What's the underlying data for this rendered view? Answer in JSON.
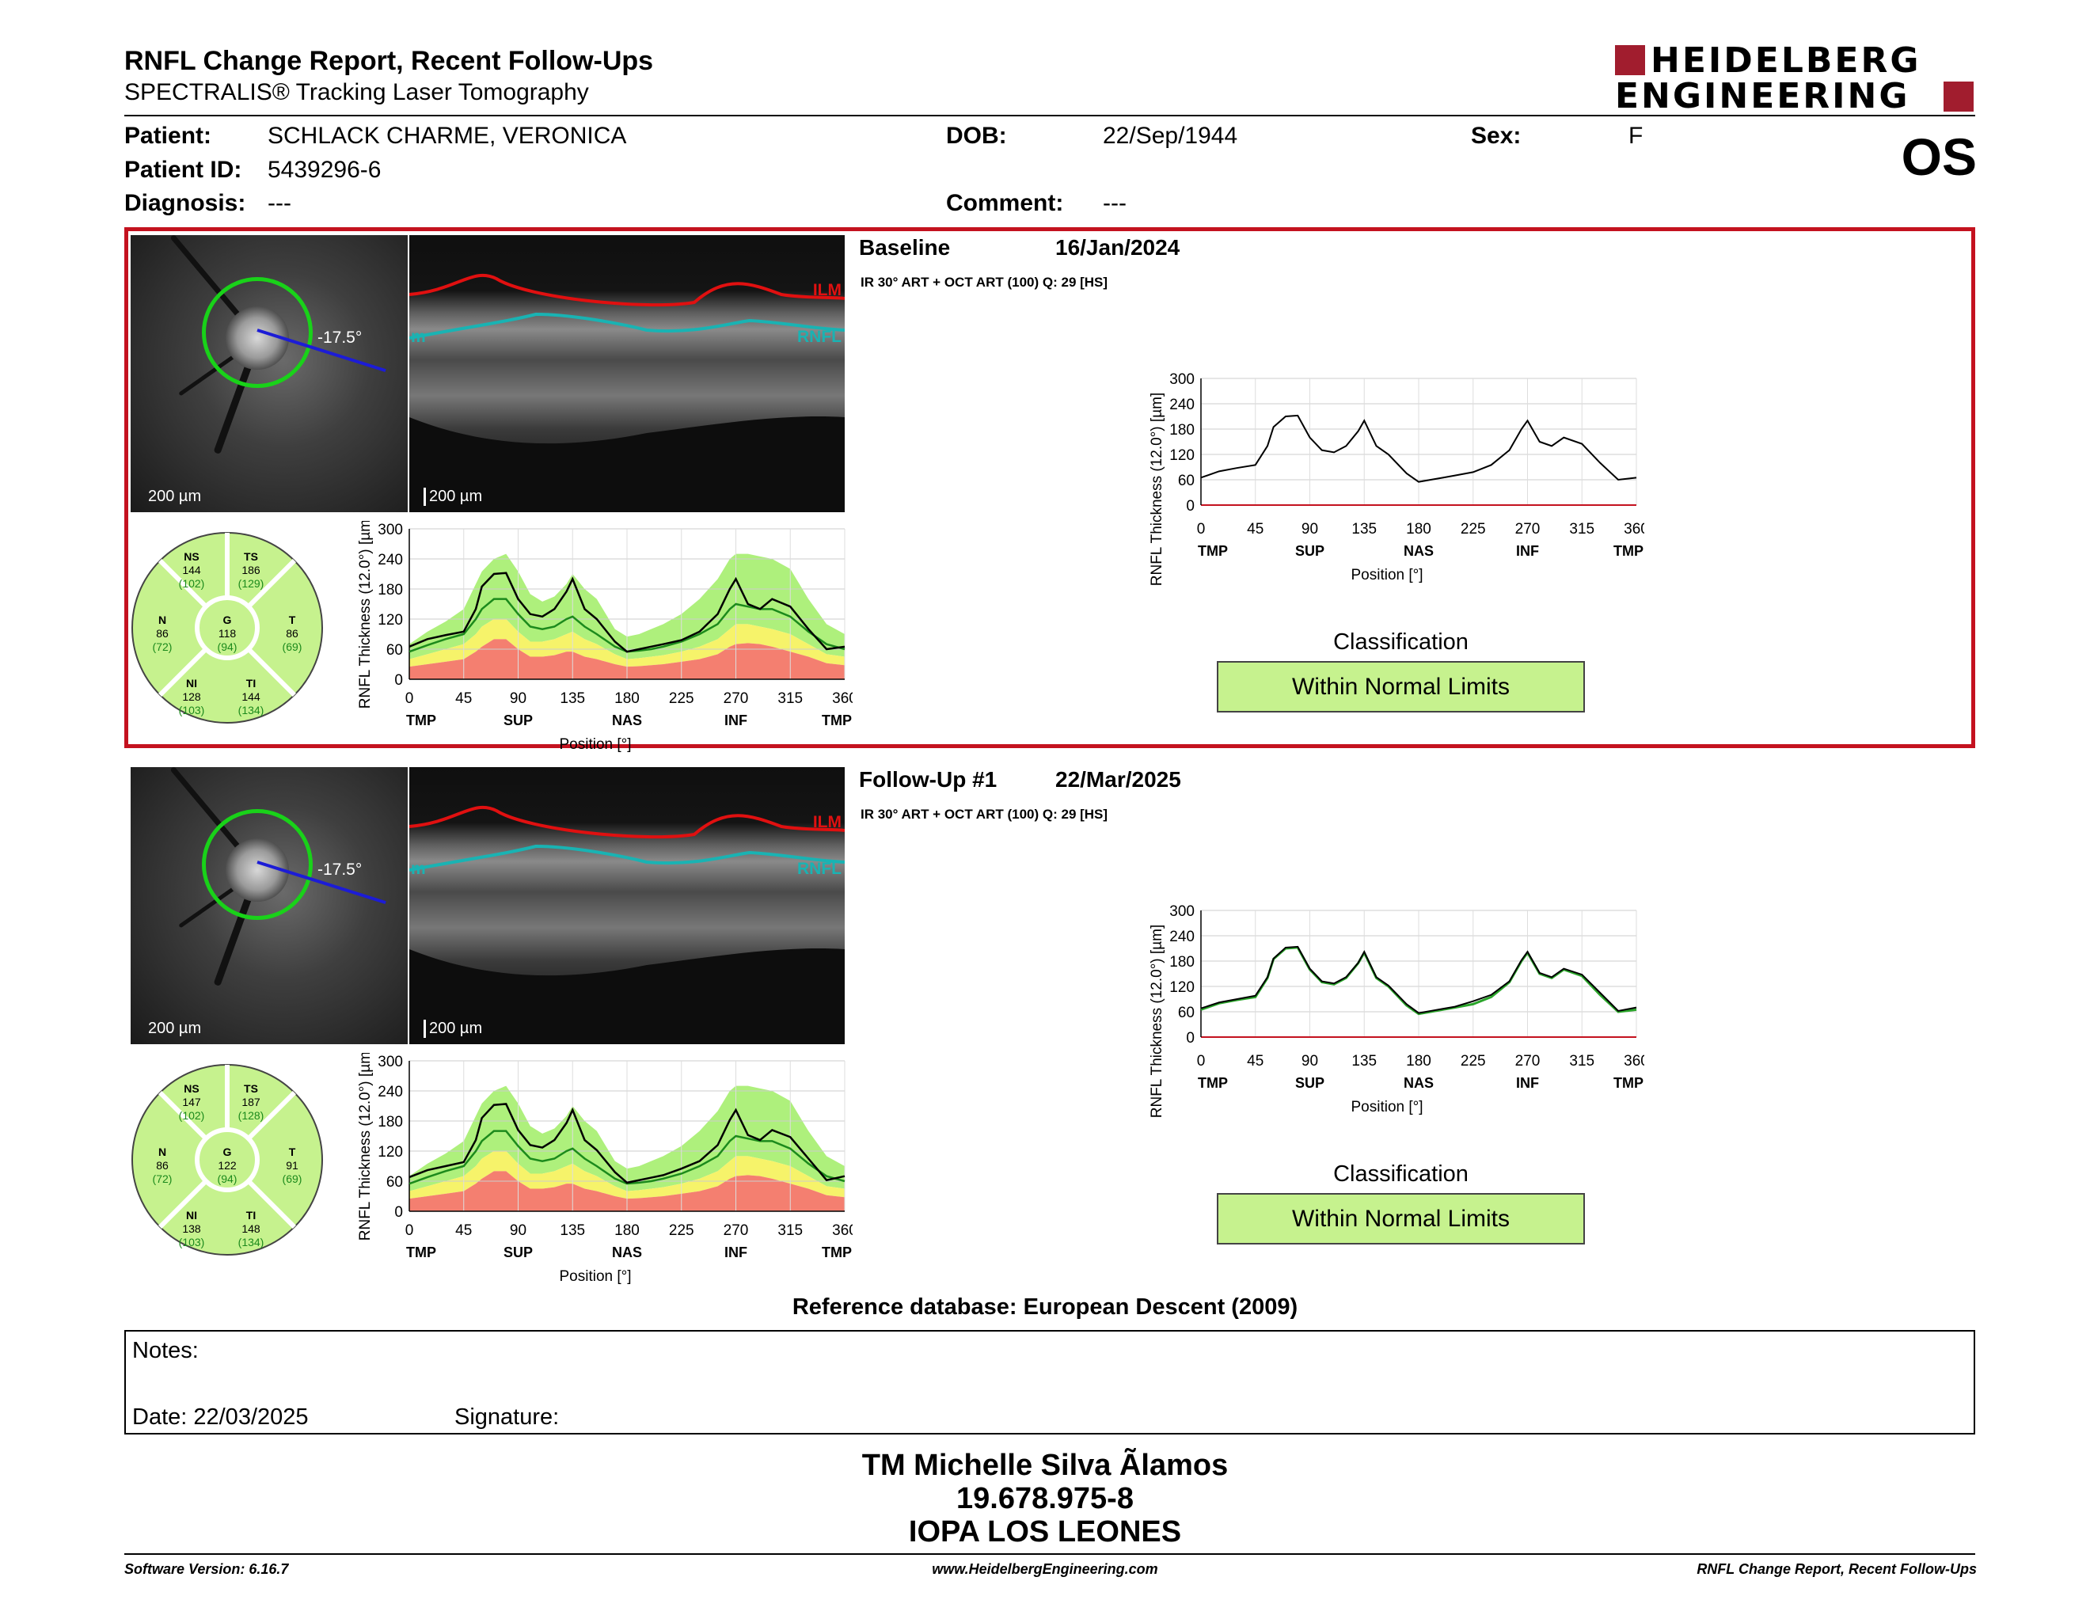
{
  "header": {
    "title": "RNFL Change Report, Recent Follow-Ups",
    "subtitle": "SPECTRALIS® Tracking Laser Tomography",
    "logo_line1": "HEIDELBERG",
    "logo_line2": "ENGINEERING",
    "eye": "OS"
  },
  "patient": {
    "patient_label": "Patient:",
    "patient_value": "SCHLACK CHARME, VERONICA",
    "id_label": "Patient ID:",
    "id_value": "5439296-6",
    "diag_label": "Diagnosis:",
    "diag_value": "---",
    "dob_label": "DOB:",
    "dob_value": "22/Sep/1944",
    "comment_label": "Comment:",
    "comment_value": "---",
    "sex_label": "Sex:",
    "sex_value": "F"
  },
  "image_labels": {
    "scale": "200 µm",
    "angle": "-17.5°",
    "ilm": "ILM",
    "rnfl": "RNFL",
    "m": "m"
  },
  "chart_common": {
    "ylabel": "RNFL Thickness (12.0°) [µm]",
    "xlabel": "Position [°]",
    "yticks": [
      "0",
      "60",
      "120",
      "180",
      "240",
      "300"
    ],
    "xticks": [
      "0",
      "45",
      "90",
      "135",
      "180",
      "225",
      "270",
      "315",
      "360"
    ],
    "sectors": [
      "TMP",
      "SUP",
      "NAS",
      "INF",
      "TMP"
    ],
    "classification_label": "Classification"
  },
  "exams": [
    {
      "name": "Baseline",
      "date": "16/Jan/2024",
      "acq": "IR 30° ART + OCT ART (100) Q: 29 [HS]",
      "classification": "Within Normal Limits",
      "sectors": {
        "NS": "144",
        "NS_ref": "(102)",
        "TS": "186",
        "TS_ref": "(129)",
        "N": "86",
        "N_ref": "(72)",
        "G": "118",
        "G_ref": "(94)",
        "T": "86",
        "T_ref": "(69)",
        "NI": "128",
        "NI_ref": "(103)",
        "TI": "144",
        "TI_ref": "(134)"
      }
    },
    {
      "name": "Follow-Up #1",
      "date": "22/Mar/2025",
      "acq": "IR 30° ART + OCT ART (100) Q: 29 [HS]",
      "classification": "Within Normal Limits",
      "sectors": {
        "NS": "147",
        "NS_ref": "(102)",
        "TS": "187",
        "TS_ref": "(128)",
        "N": "86",
        "N_ref": "(72)",
        "G": "122",
        "G_ref": "(94)",
        "T": "91",
        "T_ref": "(69)",
        "NI": "138",
        "NI_ref": "(103)",
        "TI": "148",
        "TI_ref": "(134)"
      }
    }
  ],
  "sector_names": {
    "NS": "NS",
    "TS": "TS",
    "N": "N",
    "G": "G",
    "T": "T",
    "NI": "NI",
    "TI": "TI"
  },
  "chart_data": [
    {
      "type": "line",
      "title": "",
      "xlabel": "Position [°]",
      "ylabel": "RNFL Thickness (12.0°) [µm]",
      "xlim": [
        0,
        360
      ],
      "ylim": [
        0,
        300
      ],
      "x": [
        0,
        15,
        30,
        45,
        55,
        60,
        70,
        80,
        90,
        100,
        110,
        120,
        130,
        135,
        145,
        155,
        170,
        180,
        190,
        200,
        210,
        225,
        240,
        255,
        265,
        270,
        280,
        290,
        300,
        315,
        330,
        345,
        360
      ],
      "series": [
        {
          "values": [
            65,
            80,
            88,
            95,
            140,
            185,
            210,
            212,
            160,
            130,
            125,
            140,
            175,
            200,
            140,
            120,
            75,
            55,
            60,
            65,
            70,
            78,
            95,
            130,
            180,
            200,
            150,
            140,
            160,
            145,
            100,
            60,
            65
          ]
        }
      ]
    },
    {
      "type": "line",
      "title": "",
      "xlabel": "Position [°]",
      "ylabel": "RNFL Thickness (12.0°) [µm]",
      "xlim": [
        0,
        360
      ],
      "ylim": [
        0,
        300
      ],
      "x": [
        0,
        15,
        30,
        45,
        55,
        60,
        70,
        80,
        90,
        100,
        110,
        120,
        130,
        135,
        145,
        155,
        170,
        180,
        190,
        200,
        210,
        225,
        240,
        255,
        265,
        270,
        280,
        290,
        300,
        315,
        330,
        345,
        360
      ],
      "series": [
        {
          "values": [
            68,
            82,
            90,
            98,
            142,
            186,
            212,
            214,
            162,
            132,
            127,
            142,
            176,
            202,
            142,
            122,
            78,
            57,
            62,
            67,
            72,
            85,
            100,
            132,
            182,
            202,
            152,
            142,
            162,
            148,
            105,
            62,
            70
          ]
        }
      ]
    }
  ],
  "reference": "Reference database: European Descent (2009)",
  "notes": {
    "notes_label": "Notes:",
    "date_label": "Date: 22/03/2025",
    "signature_label": "Signature:"
  },
  "signature": {
    "name": "TM Michelle Silva Ãlamos",
    "id": "19.678.975-8",
    "org": "IOPA LOS LEONES"
  },
  "footer": {
    "version": "Software Version: 6.16.7",
    "url": "www.HeidelbergEngineering.com",
    "report": "RNFL Change Report, Recent Follow-Ups"
  },
  "colors": {
    "accent_red": "#c4121f",
    "normal_green": "#c6f28e",
    "border_green": "#aef07c",
    "bl_red": "#f47f70"
  }
}
